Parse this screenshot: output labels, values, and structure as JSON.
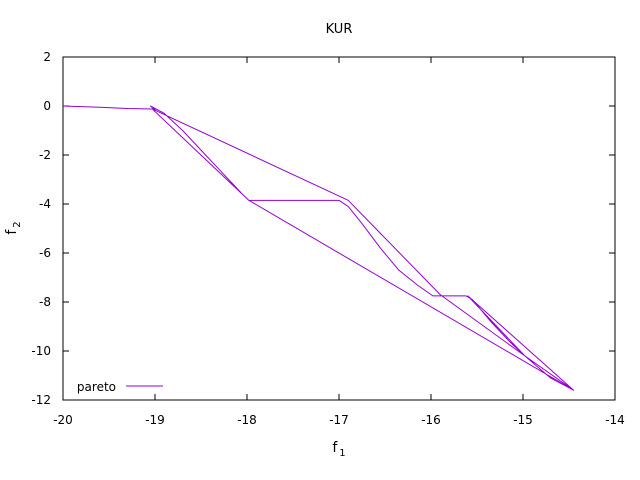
{
  "chart_data": {
    "type": "line",
    "title": "KUR",
    "xlabel": {
      "base": "f",
      "sub": "1"
    },
    "ylabel": {
      "base": "f",
      "sub": "2"
    },
    "xlim": [
      -20,
      -14
    ],
    "ylim": [
      -12,
      2
    ],
    "xticks": [
      -20,
      -19,
      -18,
      -17,
      -16,
      -15,
      -14
    ],
    "yticks": [
      2,
      0,
      -2,
      -4,
      -6,
      -8,
      -10,
      -12
    ],
    "grid": false,
    "legend_position": "bottom-left",
    "series": [
      {
        "name": "pareto",
        "color": "#9400d3",
        "points": [
          [
            -20.0,
            0.0
          ],
          [
            -19.6,
            -0.05
          ],
          [
            -19.3,
            -0.1
          ],
          [
            -19.03,
            -0.12
          ],
          [
            -19.0,
            -0.15
          ],
          [
            -19.05,
            0.0
          ],
          [
            -18.9,
            -0.3
          ],
          [
            -18.7,
            -1.0
          ],
          [
            -18.5,
            -1.8
          ],
          [
            -18.3,
            -2.6
          ],
          [
            -18.15,
            -3.2
          ],
          [
            -18.05,
            -3.6
          ],
          [
            -17.98,
            -3.85
          ],
          [
            -17.0,
            -3.85
          ],
          [
            -16.9,
            -4.1
          ],
          [
            -16.75,
            -4.8
          ],
          [
            -16.55,
            -5.8
          ],
          [
            -16.35,
            -6.7
          ],
          [
            -16.15,
            -7.3
          ],
          [
            -15.98,
            -7.75
          ],
          [
            -15.62,
            -7.75
          ],
          [
            -15.55,
            -7.9
          ],
          [
            -15.35,
            -8.8
          ],
          [
            -15.15,
            -9.6
          ],
          [
            -14.98,
            -10.2
          ],
          [
            -14.7,
            -11.1
          ],
          [
            -14.45,
            -11.6
          ],
          [
            -14.98,
            -10.2
          ],
          [
            -15.9,
            -7.7
          ],
          [
            -16.9,
            -3.85
          ],
          [
            -19.03,
            -0.12
          ],
          [
            -17.98,
            -3.85
          ],
          [
            -14.45,
            -11.6
          ],
          [
            -15.6,
            -7.75
          ],
          [
            -14.98,
            -10.2
          ]
        ]
      }
    ]
  }
}
